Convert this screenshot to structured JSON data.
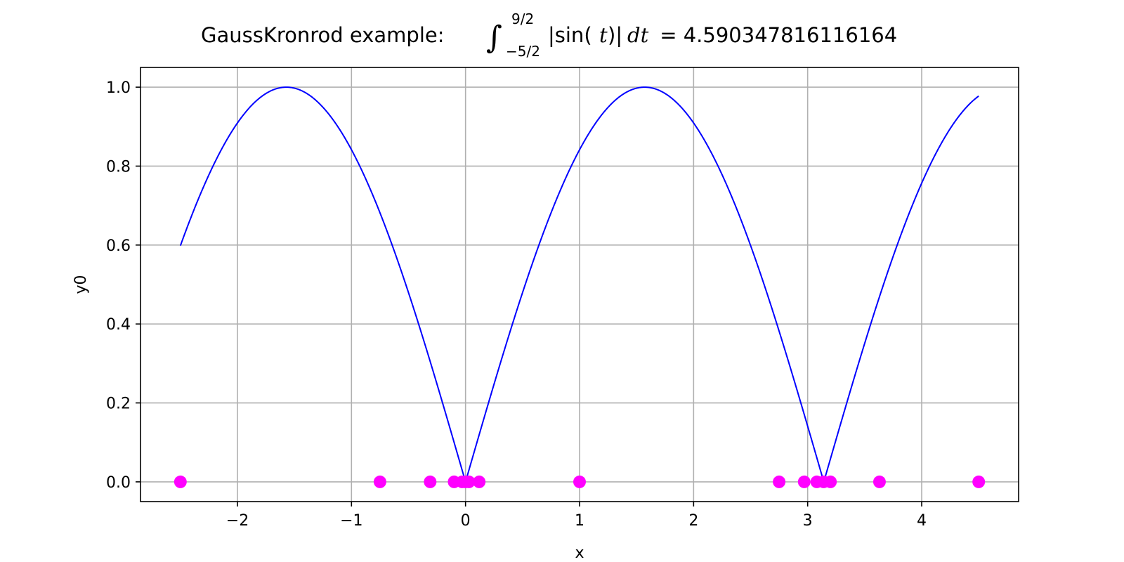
{
  "chart_data": {
    "type": "line",
    "title": {
      "prefix": "GaussKronrod example: ",
      "integral_sign": "∫",
      "upper_limit": "9/2",
      "lower_limit": "−5/2",
      "integrand_left": "|sin(",
      "integrand_var": "t",
      "integrand_right": ")|",
      "differential": "dt",
      "equals": " = 4.590347816116164"
    },
    "xlabel": "x",
    "ylabel": "y0",
    "xlim": [
      -2.85,
      4.85
    ],
    "ylim": [
      -0.05,
      1.05
    ],
    "x_ticks": [
      {
        "value": -2,
        "label": "−2"
      },
      {
        "value": -1,
        "label": "−1"
      },
      {
        "value": 0,
        "label": "0"
      },
      {
        "value": 1,
        "label": "1"
      },
      {
        "value": 2,
        "label": "2"
      },
      {
        "value": 3,
        "label": "3"
      },
      {
        "value": 4,
        "label": "4"
      }
    ],
    "y_ticks": [
      {
        "value": 0.0,
        "label": "0.0"
      },
      {
        "value": 0.2,
        "label": "0.2"
      },
      {
        "value": 0.4,
        "label": "0.4"
      },
      {
        "value": 0.6,
        "label": "0.6"
      },
      {
        "value": 0.8,
        "label": "0.8"
      },
      {
        "value": 1.0,
        "label": "1.0"
      }
    ],
    "grid": true,
    "series": [
      {
        "kind": "line",
        "color": "#0000ff",
        "function": "abs(sin(x))",
        "x_range": [
          -2.5,
          4.5
        ]
      },
      {
        "kind": "scatter",
        "color": "#ff00ff",
        "points": [
          {
            "x": -2.5,
            "y": 0.0
          },
          {
            "x": -0.75,
            "y": 0.0
          },
          {
            "x": -0.31,
            "y": 0.0
          },
          {
            "x": -0.1,
            "y": 0.0
          },
          {
            "x": -0.03,
            "y": 0.0
          },
          {
            "x": 0.0,
            "y": 0.0
          },
          {
            "x": 0.03,
            "y": 0.0
          },
          {
            "x": 0.12,
            "y": 0.0
          },
          {
            "x": 1.0,
            "y": 0.0
          },
          {
            "x": 2.75,
            "y": 0.0
          },
          {
            "x": 2.97,
            "y": 0.0
          },
          {
            "x": 3.08,
            "y": 0.0
          },
          {
            "x": 3.14,
            "y": 0.0
          },
          {
            "x": 3.2,
            "y": 0.0
          },
          {
            "x": 3.63,
            "y": 0.0
          },
          {
            "x": 4.5,
            "y": 0.0
          }
        ]
      }
    ]
  }
}
